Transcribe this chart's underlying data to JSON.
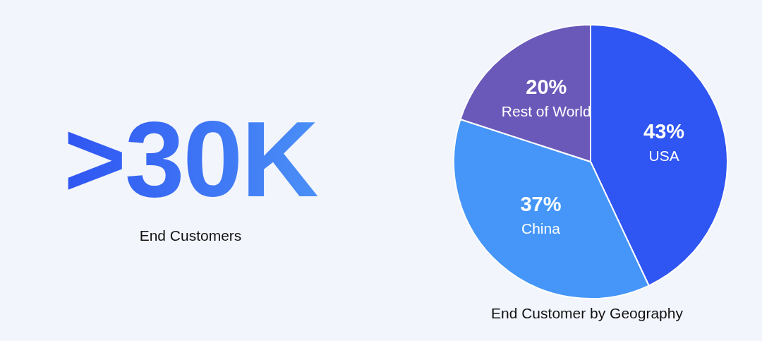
{
  "chart_data": [
    {
      "type": "other",
      "annotations": [
        ">30K",
        "End Customers"
      ]
    },
    {
      "type": "pie",
      "title": "End Customer by Geography",
      "categories": [
        "USA",
        "China",
        "Rest of World"
      ],
      "values": [
        43,
        37,
        20
      ],
      "colors": [
        "#2f55f2",
        "#4596f8",
        "#6a59b9"
      ],
      "value_labels": [
        "43%",
        "37%",
        "20%"
      ]
    }
  ]
}
